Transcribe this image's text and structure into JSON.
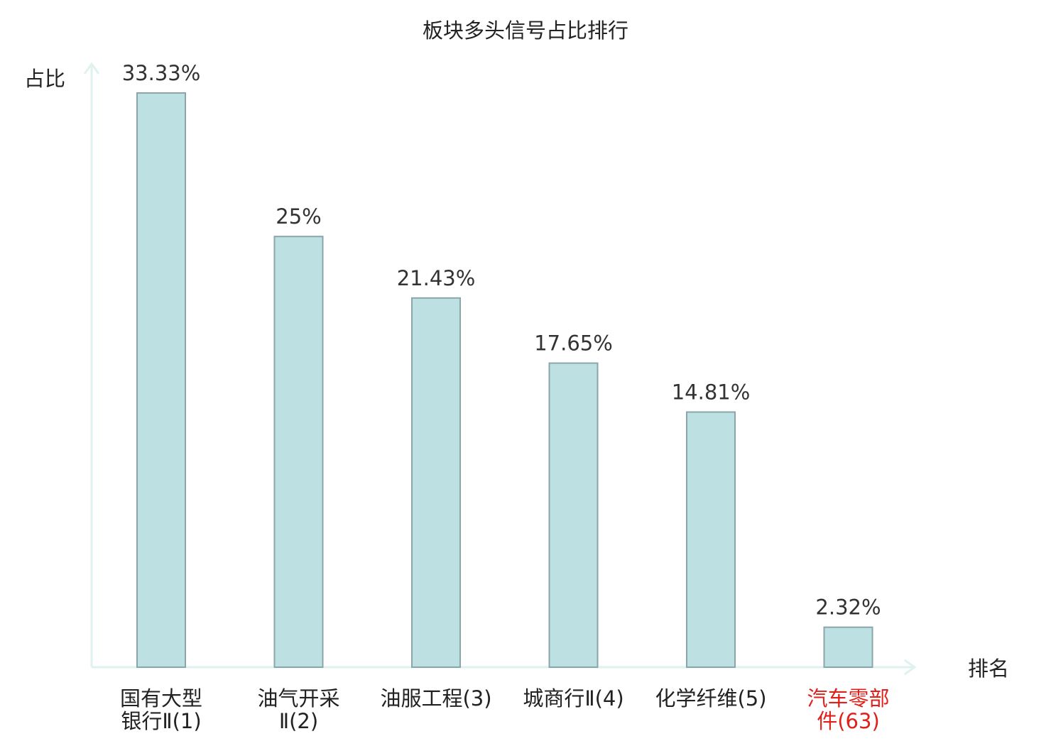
{
  "chart_data": {
    "type": "bar",
    "title": "板块多头信号占比排行",
    "xlabel": "排名",
    "ylabel": "占比",
    "categories": [
      [
        "国有大型",
        "银行Ⅱ(1)"
      ],
      [
        "油气开采",
        "Ⅱ(2)"
      ],
      [
        "油服工程(3)"
      ],
      [
        "城商行Ⅱ(4)"
      ],
      [
        "化学纤维(5)"
      ],
      [
        "汽车零部",
        "件(63)"
      ]
    ],
    "values": [
      33.33,
      25,
      21.43,
      17.65,
      14.81,
      2.32
    ],
    "value_labels": [
      "33.33%",
      "25%",
      "21.43%",
      "17.65%",
      "14.81%",
      "2.32%"
    ],
    "highlight_index": 5,
    "ylim": [
      0,
      35
    ],
    "grid": false,
    "colors": {
      "bar_fill": "#bde0e3",
      "bar_stroke": "#8aa6aa",
      "axis": "#dff2ef",
      "text": "#222222",
      "value_text": "#333333",
      "highlight": "#e0201a"
    }
  }
}
